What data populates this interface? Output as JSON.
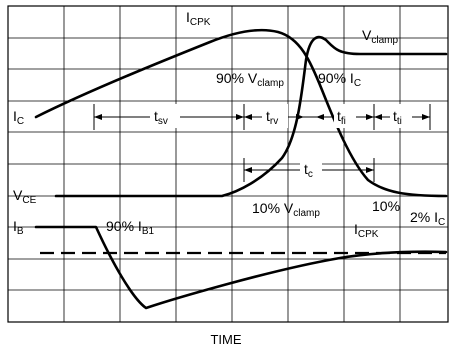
{
  "diagram": {
    "x_axis_label": "TIME",
    "curves": [
      {
        "id": "ic",
        "label": "I",
        "sub": "C"
      },
      {
        "id": "vce",
        "label": "V",
        "sub": "CE"
      },
      {
        "id": "ib",
        "label": "I",
        "sub": "B"
      }
    ],
    "peak_labels": {
      "icpk": {
        "label": "I",
        "sub": "CPK"
      },
      "vclamp": {
        "label": "V",
        "sub": "clamp"
      }
    },
    "annotations": {
      "pct90_vclamp": {
        "text": "90% V",
        "sub": "clamp"
      },
      "pct90_ic": {
        "text": "90% I",
        "sub": "C"
      },
      "pct10_vclamp": {
        "text": "10% V",
        "sub": "clamp"
      },
      "pct10_icpk": {
        "text": "10%",
        "line2": "I",
        "sub": "CPK"
      },
      "pct2_ic": {
        "text": "2% I",
        "sub": "C"
      },
      "pct90_ib1": {
        "text": "90% I",
        "sub": "B1"
      }
    },
    "intervals": {
      "tsv": {
        "label": "t",
        "sub": "sv"
      },
      "trv": {
        "label": "t",
        "sub": "rv"
      },
      "tfi": {
        "label": "t",
        "sub": "fi"
      },
      "tti": {
        "label": "t",
        "sub": "ti"
      },
      "tc": {
        "label": "t",
        "sub": "c"
      }
    }
  }
}
